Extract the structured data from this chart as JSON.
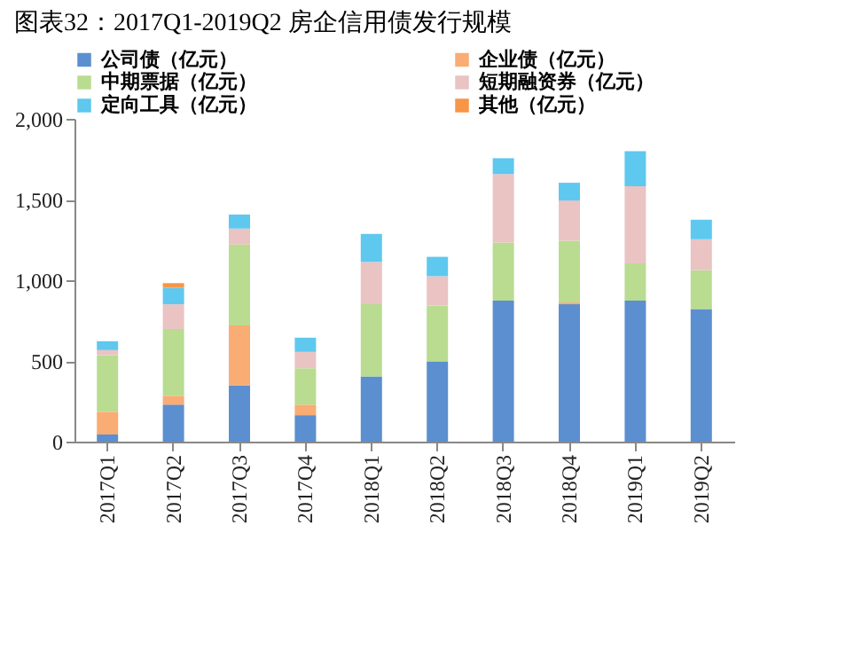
{
  "chart_data": {
    "type": "bar",
    "stacked": true,
    "title": "图表32：2017Q1-2019Q2 房企信用债发行规模",
    "categories": [
      "2017Q1",
      "2017Q2",
      "2017Q3",
      "2017Q4",
      "2018Q1",
      "2018Q2",
      "2018Q3",
      "2018Q4",
      "2019Q1",
      "2019Q2"
    ],
    "series": [
      {
        "name": "公司债（亿元）",
        "color": "#5b8fcf",
        "values": [
          44,
          229,
          349,
          164,
          404,
          495,
          873,
          851,
          873,
          822
        ]
      },
      {
        "name": "企业债（亿元）",
        "color": "#f9ac74",
        "values": [
          141,
          55,
          371,
          65,
          0,
          5,
          0,
          11,
          0,
          0
        ]
      },
      {
        "name": "中期票据（亿元）",
        "color": "#b9dc90",
        "values": [
          350,
          414,
          502,
          226,
          447,
          344,
          360,
          382,
          232,
          240
        ]
      },
      {
        "name": "短期融资券（亿元）",
        "color": "#eac3c3",
        "values": [
          32,
          153,
          98,
          101,
          262,
          181,
          425,
          250,
          477,
          192
        ]
      },
      {
        "name": "定向工具（亿元）",
        "color": "#5ec8ef",
        "values": [
          55,
          102,
          87,
          88,
          174,
          120,
          98,
          110,
          218,
          121
        ]
      },
      {
        "name": "其他（亿元）",
        "color": "#f79646",
        "values": [
          0,
          29,
          0,
          0,
          0,
          0,
          0,
          0,
          0,
          0
        ]
      }
    ],
    "ylim": [
      0,
      2000
    ],
    "yticks": [
      0,
      {
        "value": 500,
        "label": "500"
      },
      {
        "value": 1000,
        "label": "1,000"
      },
      {
        "value": 1500,
        "label": "1,500"
      },
      {
        "value": 2000,
        "label": "2,000"
      }
    ],
    "grid": false,
    "legend": "top"
  }
}
